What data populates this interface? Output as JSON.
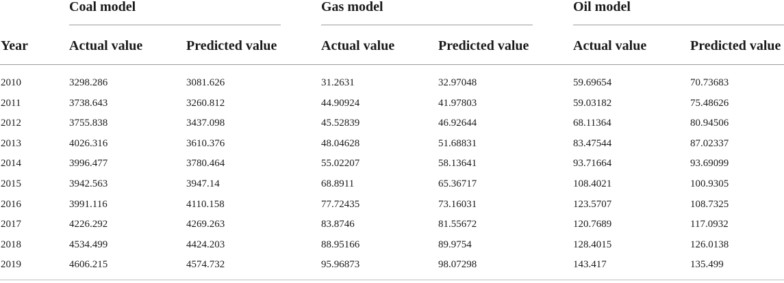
{
  "table": {
    "groups": [
      "Coal model",
      "Gas model",
      "Oil model"
    ],
    "columns": [
      "Year",
      "Actual value",
      "Predicted value",
      "Actual value",
      "Predicted value",
      "Actual value",
      "Predicted value"
    ],
    "rows": [
      [
        "2010",
        "3298.286",
        "3081.626",
        "31.2631",
        "32.97048",
        "59.69654",
        "70.73683"
      ],
      [
        "2011",
        "3738.643",
        "3260.812",
        "44.90924",
        "41.97803",
        "59.03182",
        "75.48626"
      ],
      [
        "2012",
        "3755.838",
        "3437.098",
        "45.52839",
        "46.92644",
        "68.11364",
        "80.94506"
      ],
      [
        "2013",
        "4026.316",
        "3610.376",
        "48.04628",
        "51.68831",
        "83.47544",
        "87.02337"
      ],
      [
        "2014",
        "3996.477",
        "3780.464",
        "55.02207",
        "58.13641",
        "93.71664",
        "93.69099"
      ],
      [
        "2015",
        "3942.563",
        "3947.14",
        "68.8911",
        "65.36717",
        "108.4021",
        "100.9305"
      ],
      [
        "2016",
        "3991.116",
        "4110.158",
        "77.72435",
        "73.16031",
        "123.5707",
        "108.7325"
      ],
      [
        "2017",
        "4226.292",
        "4269.263",
        "83.8746",
        "81.55672",
        "120.7689",
        "117.0932"
      ],
      [
        "2018",
        "4534.499",
        "4424.203",
        "88.95166",
        "89.9754",
        "128.4015",
        "126.0138"
      ],
      [
        "2019",
        "4606.215",
        "4574.732",
        "95.96873",
        "98.07298",
        "143.417",
        "135.499"
      ]
    ]
  }
}
